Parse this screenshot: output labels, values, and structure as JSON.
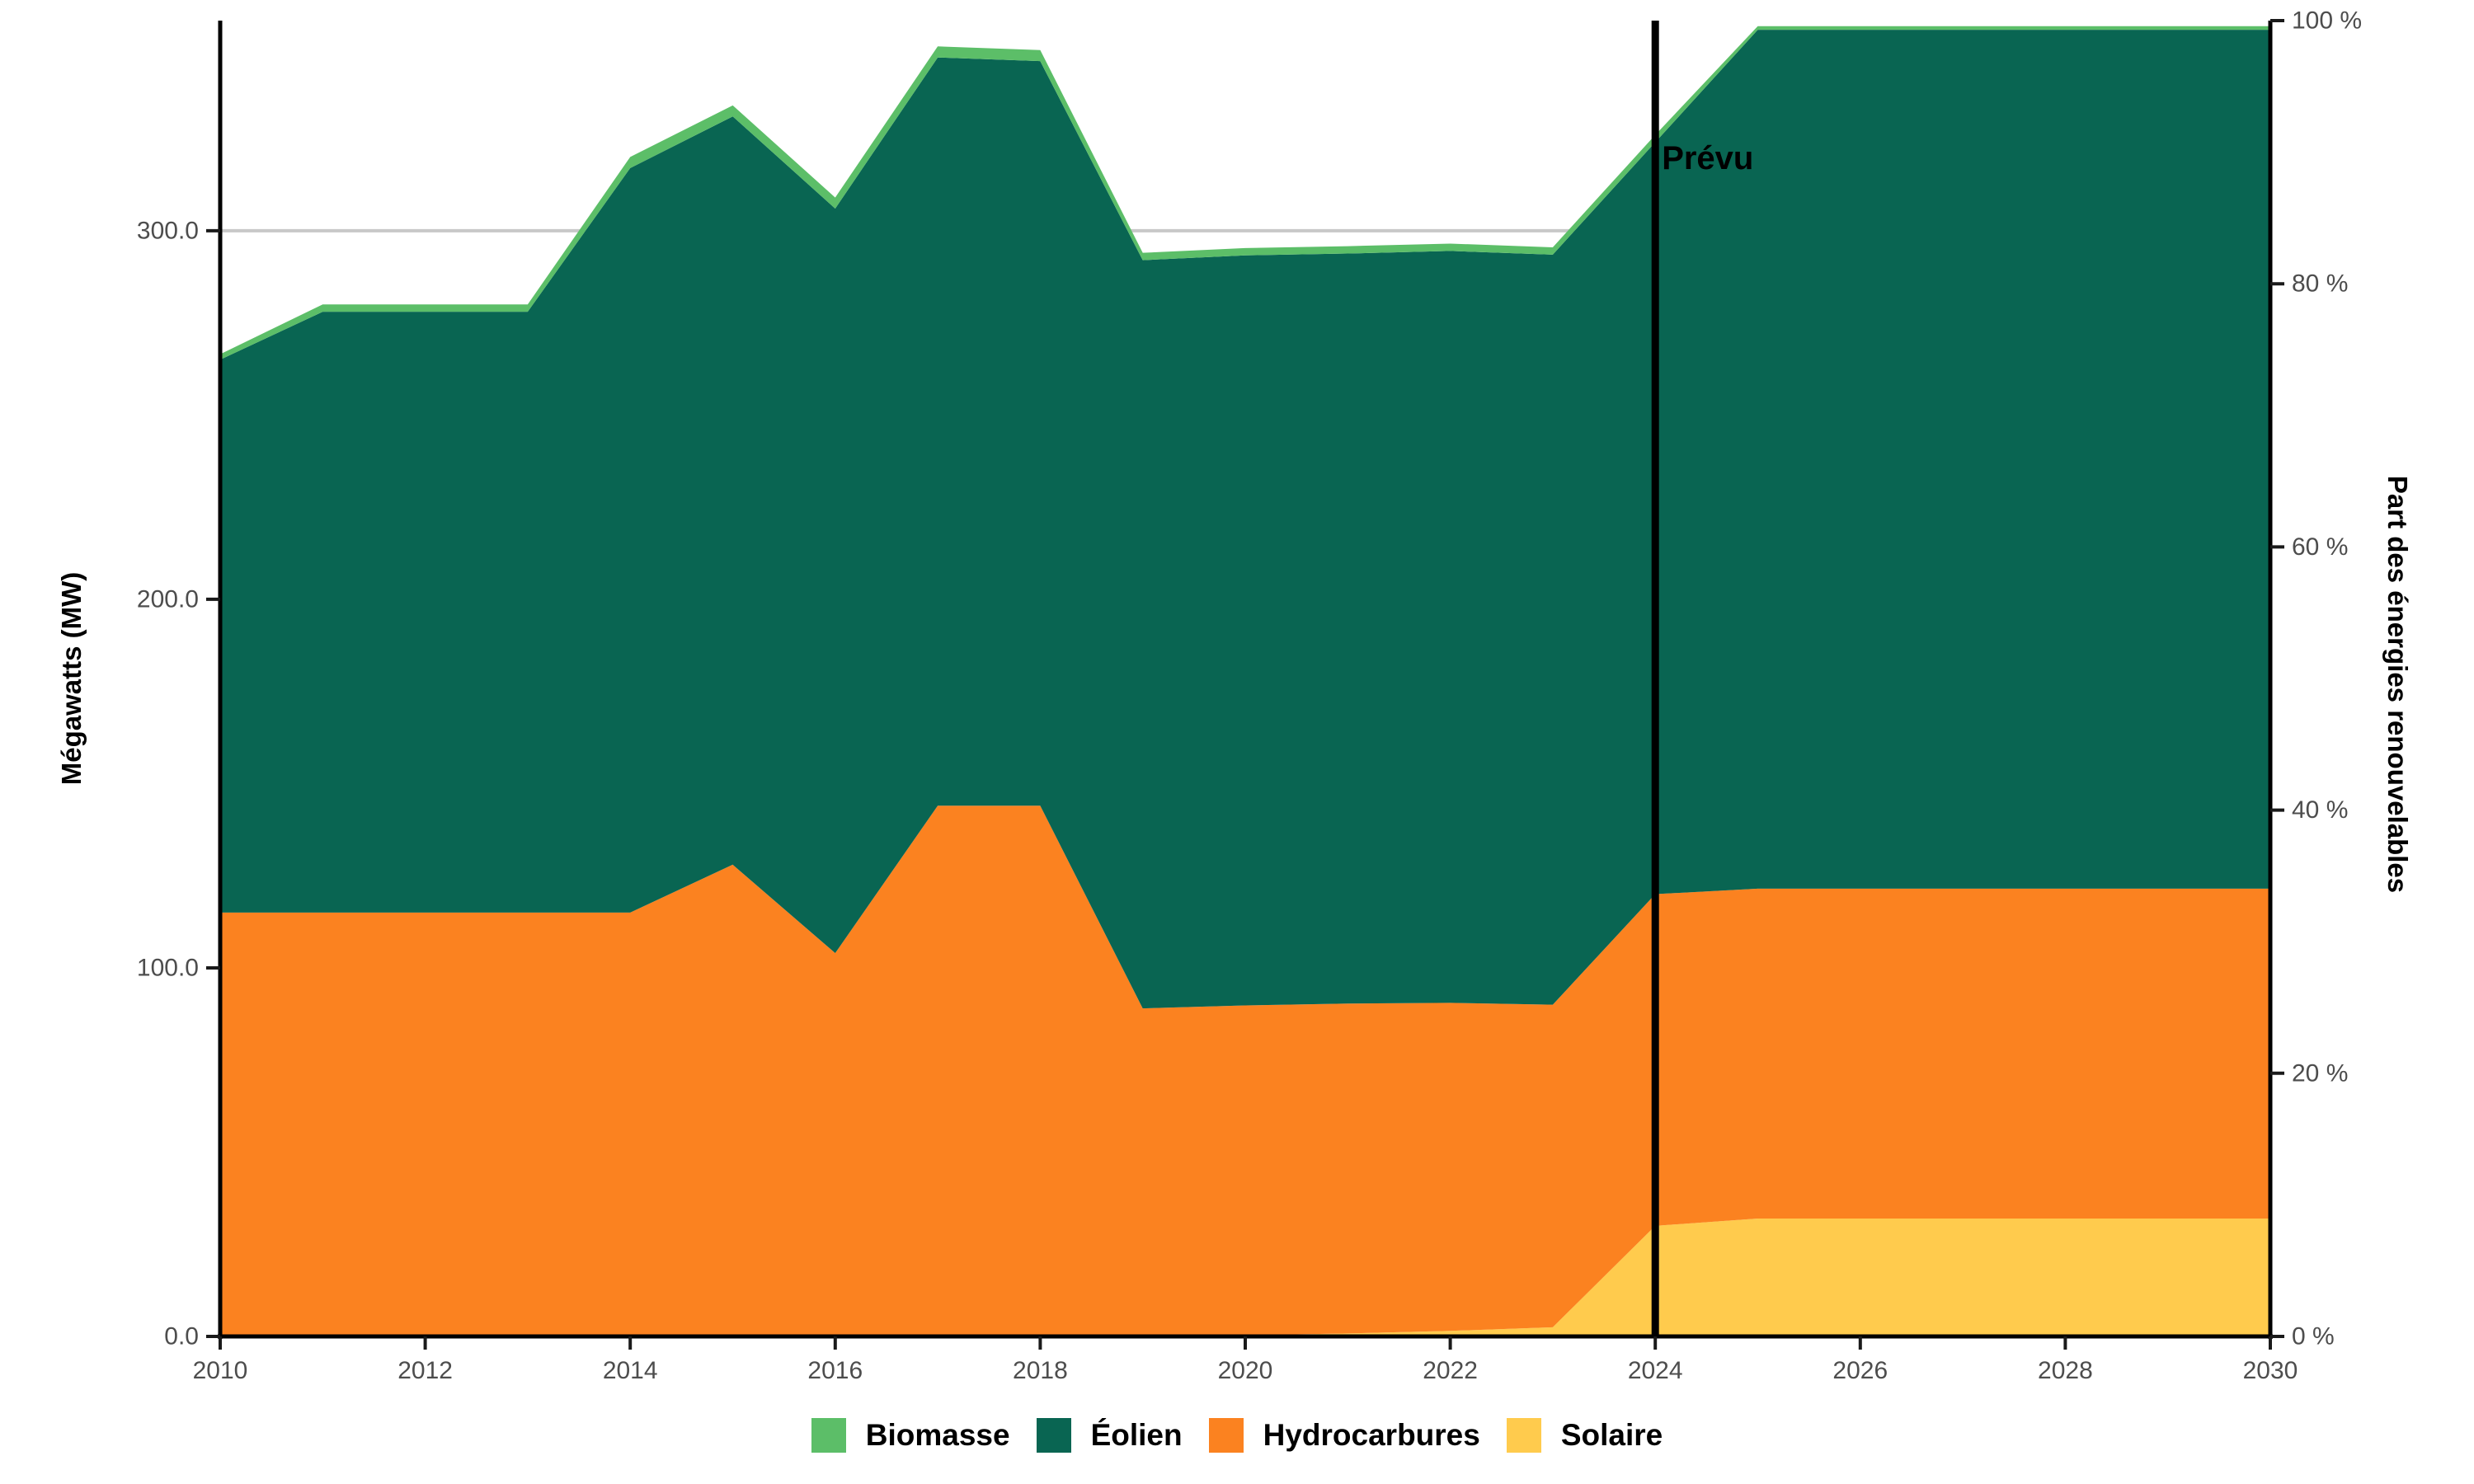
{
  "chart_data": {
    "type": "area",
    "stacked": true,
    "title": "",
    "x": [
      2010,
      2011,
      2012,
      2013,
      2014,
      2015,
      2016,
      2017,
      2018,
      2019,
      2020,
      2021,
      2022,
      2023,
      2024,
      2025,
      2026,
      2027,
      2028,
      2029,
      2030
    ],
    "series": [
      {
        "name": "Solaire",
        "color": "#FFCB4D",
        "values": [
          0,
          0,
          0,
          0,
          0,
          0,
          0,
          0,
          0,
          0,
          0.3,
          0.8,
          1.5,
          2.5,
          30,
          32,
          32,
          32,
          32,
          32,
          32
        ]
      },
      {
        "name": "Hydrocarbures",
        "color": "#FB8220",
        "values": [
          115,
          115,
          115,
          115,
          115,
          128,
          104,
          144,
          144,
          89,
          89.5,
          89.5,
          89,
          87.5,
          90,
          89.5,
          89.5,
          89.5,
          89.5,
          89.5,
          89.5
        ]
      },
      {
        "name": "Éolien",
        "color": "#096552",
        "values": [
          150,
          163,
          163,
          163,
          202,
          203,
          202,
          203,
          202,
          203,
          203.5,
          203.5,
          204,
          203.5,
          204,
          233,
          233,
          233,
          233,
          233,
          233
        ]
      },
      {
        "name": "Biomasse",
        "color": "#5CBE68",
        "values": [
          1.5,
          2,
          2,
          2,
          3,
          3,
          3,
          3,
          3,
          2,
          2,
          2,
          2,
          2,
          2,
          1,
          1,
          1,
          1,
          1,
          1
        ]
      }
    ],
    "legend_order": [
      "Biomasse",
      "Éolien",
      "Hydrocarbures",
      "Solaire"
    ],
    "left_axis": {
      "label": "Mégawatts (MW)",
      "max_value": 357,
      "ticks": [
        {
          "value": 0,
          "label": "0.0"
        },
        {
          "value": 100,
          "label": "100.0"
        },
        {
          "value": 200,
          "label": "200.0"
        },
        {
          "value": 300,
          "label": "300.0"
        }
      ]
    },
    "right_axis": {
      "label": "Part des énergies renouvelables",
      "range": [
        0,
        100
      ],
      "ticks": [
        {
          "value": 0,
          "label": "0 %"
        },
        {
          "value": 20,
          "label": "20 %"
        },
        {
          "value": 40,
          "label": "40 %"
        },
        {
          "value": 60,
          "label": "60 %"
        },
        {
          "value": 80,
          "label": "80 %"
        },
        {
          "value": 100,
          "label": "100 %"
        }
      ]
    },
    "x_axis": {
      "ticks": [
        {
          "value": 2010,
          "label": "2010"
        },
        {
          "value": 2012,
          "label": "2012"
        },
        {
          "value": 2014,
          "label": "2014"
        },
        {
          "value": 2016,
          "label": "2016"
        },
        {
          "value": 2018,
          "label": "2018"
        },
        {
          "value": 2020,
          "label": "2020"
        },
        {
          "value": 2022,
          "label": "2022"
        },
        {
          "value": 2024,
          "label": "2024"
        },
        {
          "value": 2026,
          "label": "2026"
        },
        {
          "value": 2028,
          "label": "2028"
        },
        {
          "value": 2030,
          "label": "2030"
        }
      ]
    },
    "gridlines_mw": [
      300
    ],
    "annotation": {
      "x": 2024,
      "label": "Prévu"
    },
    "style": {
      "grid_color": "#C8C8C8",
      "axis_color": "#000000",
      "tick_color": "#1A1A1A",
      "tick_label_color": "#4D4D4D"
    }
  }
}
